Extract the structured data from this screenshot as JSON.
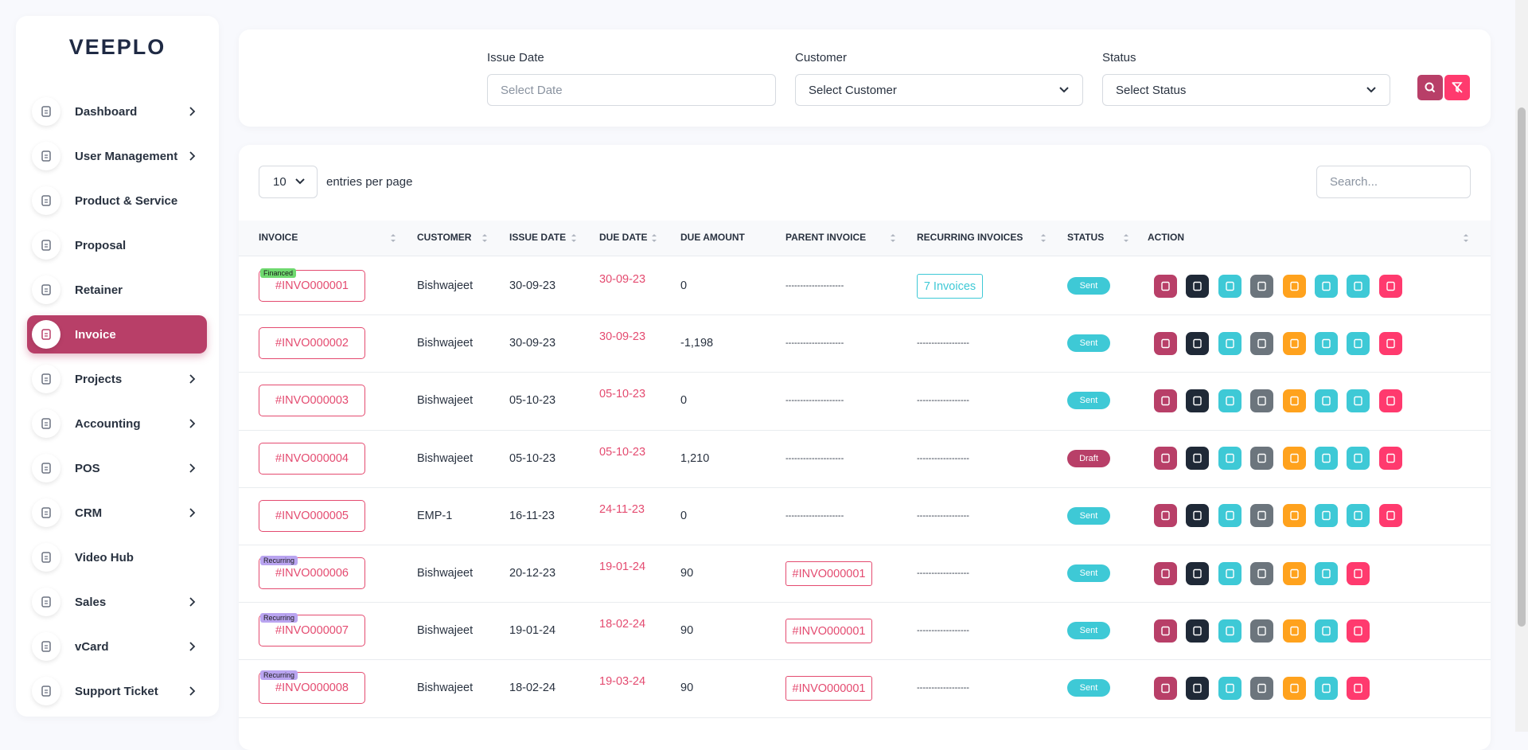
{
  "sidebar": {
    "logo": "VEEPLO",
    "menu": [
      "Dashboard",
      "User Management",
      "Product & Service",
      "Proposal",
      "Retainer",
      "Invoice",
      "Projects",
      "Accounting",
      "POS",
      "CRM",
      "Video Hub",
      "Sales",
      "vCard",
      "Support Ticket"
    ]
  },
  "filters": {
    "issue_date": {
      "label": "Issue Date",
      "placeholder": "Select Date"
    },
    "customer": {
      "label": "Customer",
      "placeholder": "Select Customer"
    },
    "status": {
      "label": "Status",
      "placeholder": "Select Status"
    }
  },
  "table": {
    "entries": "10",
    "entries_label": "entries per page",
    "search_placeholder": "Search...",
    "headers": [
      "INVOICE",
      "CUSTOMER",
      "ISSUE DATE",
      "DUE DATE",
      "DUE AMOUNT",
      "PARENT INVOICE",
      "RECURRING INVOICES",
      "STATUS",
      "ACTION"
    ],
    "rows": [
      {
        "tag": "Financed",
        "invoice": "#INVO000001",
        "customer": "Bishwajeet",
        "issue_date": "30-09-23",
        "due_date": "30-09-23",
        "due_amount": "0",
        "parent": "--------------------",
        "recurring": "7 Invoices",
        "status": "Sent"
      },
      {
        "invoice": "#INVO000002",
        "customer": "Bishwajeet",
        "issue_date": "30-09-23",
        "due_date": "30-09-23",
        "due_amount": "-1,198",
        "parent": "--------------------",
        "recurring": "------------------",
        "status": "Sent"
      },
      {
        "invoice": "#INVO000003",
        "customer": "Bishwajeet",
        "issue_date": "05-10-23",
        "due_date": "05-10-23",
        "due_amount": "0",
        "parent": "--------------------",
        "recurring": "------------------",
        "status": "Sent"
      },
      {
        "invoice": "#INVO000004",
        "customer": "Bishwajeet",
        "issue_date": "05-10-23",
        "due_date": "05-10-23",
        "due_amount": "1,210",
        "parent": "--------------------",
        "recurring": "------------------",
        "status": "Draft"
      },
      {
        "invoice": "#INVO000005",
        "customer": "EMP-1",
        "issue_date": "16-11-23",
        "due_date": "24-11-23",
        "due_amount": "0",
        "parent": "--------------------",
        "recurring": "------------------",
        "status": "Sent"
      },
      {
        "tag": "Recurring",
        "invoice": "#INVO000006",
        "customer": "Bishwajeet",
        "issue_date": "20-12-23",
        "due_date": "19-01-24",
        "due_amount": "90",
        "parent": "#INVO000001",
        "recurring": "------------------",
        "status": "Sent"
      },
      {
        "tag": "Recurring",
        "invoice": "#INVO000007",
        "customer": "Bishwajeet",
        "issue_date": "19-01-24",
        "due_date": "18-02-24",
        "due_amount": "90",
        "parent": "#INVO000001",
        "recurring": "------------------",
        "status": "Sent"
      },
      {
        "tag": "Recurring",
        "invoice": "#INVO000008",
        "customer": "Bishwajeet",
        "issue_date": "18-02-24",
        "due_date": "19-03-24",
        "due_amount": "90",
        "parent": "#INVO000001",
        "recurring": "------------------",
        "status": "Sent"
      }
    ]
  }
}
